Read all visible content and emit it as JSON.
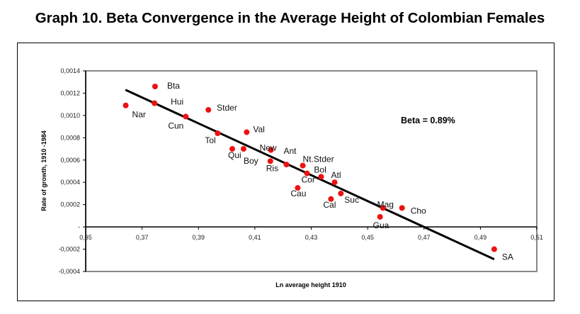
{
  "chart_data": {
    "type": "scatter",
    "title": "Graph 10. Beta Convergence in the Average Height of Colombian Females",
    "xlabel": "Ln average height 1910",
    "ylabel": "Rate of growth, 1910 -1984",
    "xlim": [
      0.35,
      0.51
    ],
    "ylim": [
      -0.0004,
      0.0014
    ],
    "x_ticks": [
      0.35,
      0.37,
      0.39,
      0.41,
      0.43,
      0.45,
      0.47,
      0.49,
      0.51
    ],
    "x_tick_labels": [
      "0,35",
      "0,37",
      "0,39",
      "0,41",
      "0,43",
      "0,45",
      "0,47",
      "0,49",
      "0,51"
    ],
    "y_ticks": [
      -0.0004,
      -0.0002,
      0,
      0.0002,
      0.0004,
      0.0006,
      0.0008,
      0.001,
      0.0012,
      0.0014
    ],
    "y_tick_labels": [
      "-0,0004",
      "-0,0002",
      "-",
      "0,0002",
      "0,0004",
      "0,0006",
      "0,0008",
      "0,0010",
      "0,0012",
      "0,0014"
    ],
    "grid": false,
    "annotation": "Beta = 0.89%",
    "marker_color": "#ee1111",
    "line_color": "#000000",
    "points": [
      {
        "label": "Bta",
        "x": 0.3746,
        "y": 0.00126
      },
      {
        "label": "Hui",
        "x": 0.3744,
        "y": 0.00111
      },
      {
        "label": "Nar",
        "x": 0.3642,
        "y": 0.00109
      },
      {
        "label": "Cun",
        "x": 0.3855,
        "y": 0.00099
      },
      {
        "label": "Stder",
        "x": 0.3935,
        "y": 0.00105
      },
      {
        "label": "Tol",
        "x": 0.3968,
        "y": 0.00084
      },
      {
        "label": "Val",
        "x": 0.4071,
        "y": 0.00085
      },
      {
        "label": "Qui",
        "x": 0.402,
        "y": 0.0007
      },
      {
        "label": "Boy",
        "x": 0.406,
        "y": 0.0007
      },
      {
        "label": "New",
        "x": 0.4157,
        "y": 0.00069
      },
      {
        "label": "Ris",
        "x": 0.4155,
        "y": 0.00059
      },
      {
        "label": "Ant",
        "x": 0.4212,
        "y": 0.00056
      },
      {
        "label": "Nt.Stder",
        "x": 0.427,
        "y": 0.00055
      },
      {
        "label": "Cor",
        "x": 0.4285,
        "y": 0.00048
      },
      {
        "label": "Bol",
        "x": 0.4335,
        "y": 0.00045
      },
      {
        "label": "Atl",
        "x": 0.4383,
        "y": 0.0004
      },
      {
        "label": "Cau",
        "x": 0.4252,
        "y": 0.00035
      },
      {
        "label": "Suc",
        "x": 0.4405,
        "y": 0.0003
      },
      {
        "label": "Cal",
        "x": 0.437,
        "y": 0.00025
      },
      {
        "label": "Mag",
        "x": 0.4554,
        "y": 0.00017
      },
      {
        "label": "Cho",
        "x": 0.4622,
        "y": 0.00017
      },
      {
        "label": "Gua",
        "x": 0.4544,
        "y": 9e-05
      },
      {
        "label": "SA",
        "x": 0.4949,
        "y": -0.0002
      }
    ],
    "trendline": {
      "x": [
        0.3641,
        0.4949
      ],
      "y": [
        0.00123,
        -0.00029
      ]
    }
  }
}
